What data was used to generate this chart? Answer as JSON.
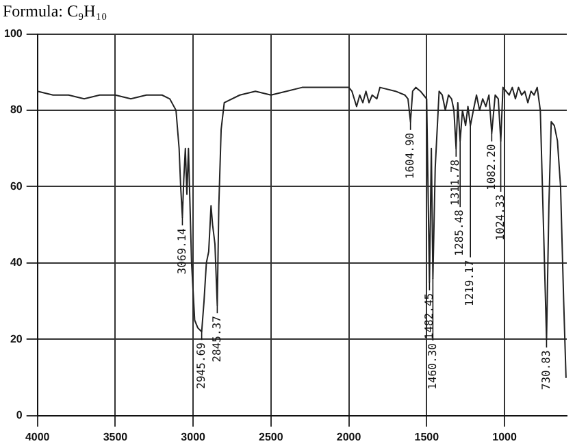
{
  "chart_data": {
    "type": "line",
    "title": "Formula: C₉H₁₀",
    "xlim": [
      4000,
      600
    ],
    "xticks": [
      4000,
      3500,
      3000,
      2500,
      2000,
      1500,
      1000
    ],
    "ylim": [
      0,
      100
    ],
    "yticks": [
      0,
      20,
      40,
      60,
      80,
      100
    ],
    "grid": true,
    "legend": false,
    "marker": "none",
    "line_style": "solid",
    "series": [
      {
        "color": "#222222",
        "x": [
          4000,
          3900,
          3800,
          3700,
          3600,
          3500,
          3400,
          3300,
          3200,
          3150,
          3110,
          3090,
          3080,
          3069,
          3060,
          3050,
          3040,
          3030,
          3010,
          2990,
          2970,
          2945,
          2930,
          2915,
          2900,
          2885,
          2875,
          2860,
          2845,
          2835,
          2820,
          2800,
          2700,
          2600,
          2500,
          2400,
          2300,
          2200,
          2100,
          2000,
          1980,
          1950,
          1930,
          1910,
          1890,
          1870,
          1850,
          1820,
          1800,
          1700,
          1640,
          1620,
          1604,
          1590,
          1570,
          1540,
          1520,
          1500,
          1482,
          1470,
          1460,
          1445,
          1420,
          1400,
          1380,
          1360,
          1340,
          1325,
          1311,
          1300,
          1285,
          1270,
          1250,
          1235,
          1219,
          1200,
          1180,
          1160,
          1140,
          1120,
          1100,
          1082,
          1060,
          1040,
          1024,
          1010,
          990,
          970,
          950,
          930,
          910,
          890,
          870,
          850,
          830,
          810,
          790,
          770,
          750,
          730,
          715,
          700,
          680,
          660,
          640,
          620,
          605
        ],
        "values": [
          85,
          84,
          84,
          83,
          84,
          84,
          83,
          84,
          84,
          83,
          80,
          70,
          60,
          52,
          62,
          70,
          58,
          70,
          40,
          25,
          23,
          22,
          30,
          40,
          43,
          55,
          50,
          45,
          29,
          55,
          75,
          82,
          84,
          85,
          84,
          85,
          86,
          86,
          86,
          86,
          85,
          81,
          84,
          82,
          85,
          82,
          84,
          83,
          86,
          85,
          84,
          83,
          77,
          85,
          86,
          85,
          84,
          83,
          35,
          70,
          36,
          65,
          85,
          84,
          80,
          84,
          83,
          80,
          70,
          82,
          72,
          80,
          76,
          81,
          76,
          80,
          84,
          80,
          83,
          81,
          84,
          74,
          84,
          83,
          72,
          86,
          85,
          84,
          86,
          83,
          86,
          84,
          85,
          82,
          85,
          84,
          86,
          80,
          50,
          20,
          55,
          77,
          76,
          72,
          60,
          30,
          10
        ]
      }
    ],
    "annotations": [
      {
        "text": "3069.14",
        "x": 3069,
        "y": 52
      },
      {
        "text": "2945.69",
        "x": 2945,
        "y": 22
      },
      {
        "text": "2845.37",
        "x": 2845,
        "y": 29
      },
      {
        "text": "1604.90",
        "x": 1604,
        "y": 77
      },
      {
        "text": "1482.45",
        "x": 1482,
        "y": 35
      },
      {
        "text": "1460.30",
        "x": 1460,
        "y": 36
      },
      {
        "text": "1311.78",
        "x": 1311,
        "y": 70
      },
      {
        "text": "1285.48",
        "x": 1285,
        "y": 72
      },
      {
        "text": "1219.17",
        "x": 1219,
        "y": 76
      },
      {
        "text": "1082.20",
        "x": 1082,
        "y": 74
      },
      {
        "text": "1024.33",
        "x": 1024,
        "y": 72
      },
      {
        "text": "730.83",
        "x": 730,
        "y": 20
      }
    ]
  }
}
